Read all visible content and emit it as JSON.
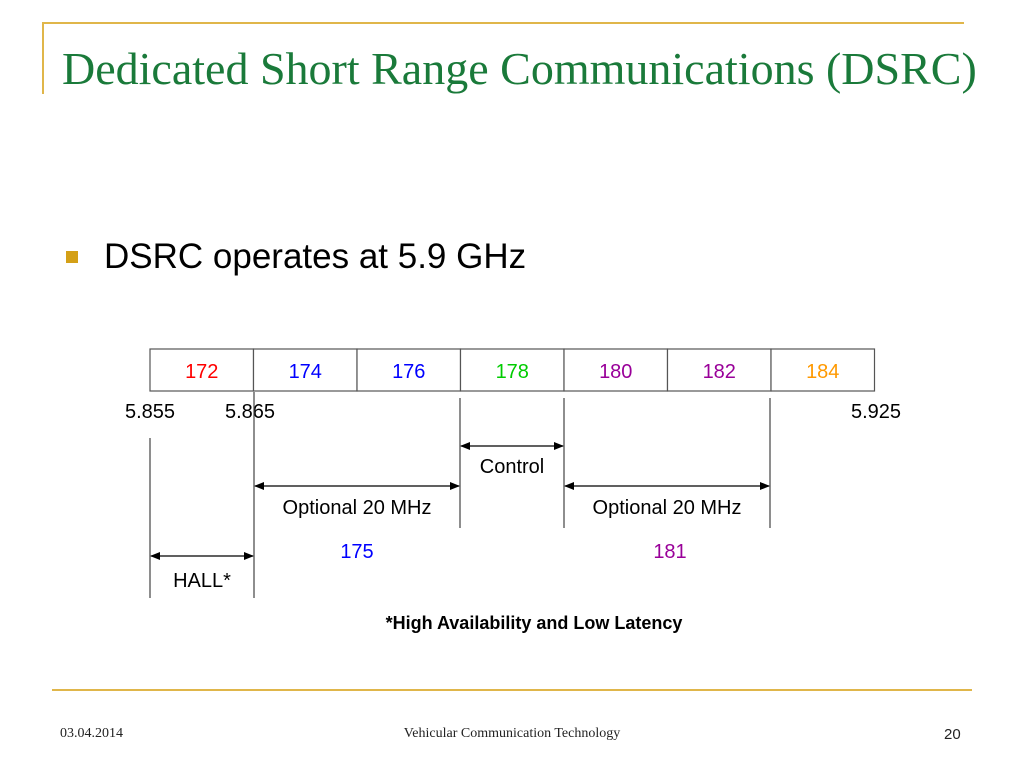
{
  "slide": {
    "title": "Dedicated Short Range Communications (DSRC)",
    "bullet": "DSRC operates at 5.9 GHz",
    "footer": {
      "date": "03.04.2014",
      "center": "Vehicular Communication Technology",
      "page": "20"
    }
  },
  "diagram": {
    "channels": [
      {
        "label": "172",
        "color": "#ff0000"
      },
      {
        "label": "174",
        "color": "#0000ff"
      },
      {
        "label": "176",
        "color": "#0000ff"
      },
      {
        "label": "178",
        "color": "#00cc00"
      },
      {
        "label": "180",
        "color": "#990099"
      },
      {
        "label": "182",
        "color": "#990099"
      },
      {
        "label": "184",
        "color": "#ff9900"
      }
    ],
    "frequencies": {
      "left": "5.855",
      "second": "5.865",
      "right": "5.925"
    },
    "control_label": "Control",
    "optional_left": "Optional 20 MHz",
    "optional_right": "Optional 20 MHz",
    "combined": [
      {
        "label": "175",
        "color": "#0000ff"
      },
      {
        "label": "181",
        "color": "#990099"
      }
    ],
    "hall_label": "HALL*",
    "footnote": "*High Availability and Low Latency"
  }
}
